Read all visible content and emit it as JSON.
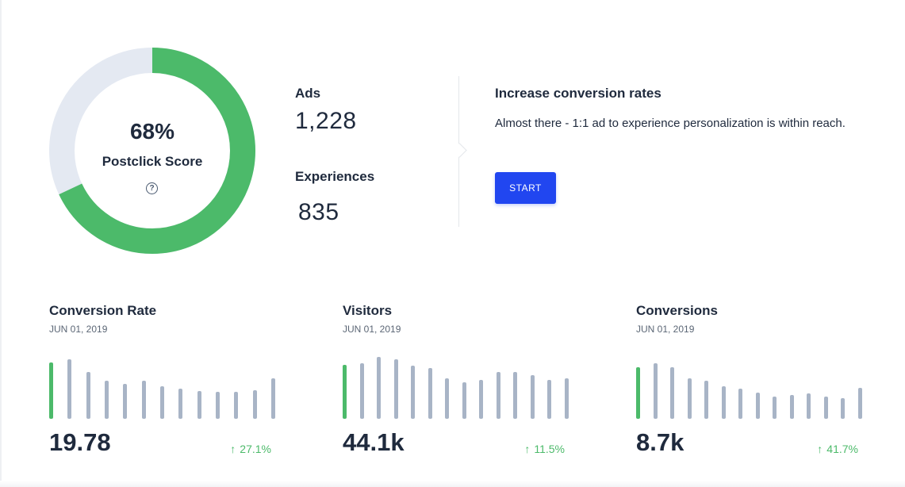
{
  "score": {
    "percent_label": "68%",
    "percent_value": 68,
    "label": "Postclick Score",
    "help_icon": "question-circle-icon",
    "colors": {
      "filled": "#4cba6a",
      "track": "#e4e9f2"
    }
  },
  "counts": {
    "ads_label": "Ads",
    "ads_value": "1,228",
    "experiences_label": "Experiences",
    "experiences_value": "835"
  },
  "promo": {
    "title": "Increase conversion rates",
    "text": "Almost there - 1:1 ad to experience personalization is within reach.",
    "button_label": "START",
    "button_color": "#2146f0"
  },
  "stats": [
    {
      "title": "Conversion Rate",
      "date": "JUN 01, 2019",
      "value": "19.78",
      "delta": "27.1%",
      "trend_icon": "arrow-up-icon",
      "bars": [
        71,
        75,
        59,
        48,
        44,
        48,
        41,
        38,
        35,
        34,
        34,
        36,
        51
      ]
    },
    {
      "title": "Visitors",
      "date": "JUN 01, 2019",
      "value": "44.1k",
      "delta": "11.5%",
      "trend_icon": "arrow-up-icon",
      "bars": [
        68,
        70,
        78,
        75,
        67,
        64,
        51,
        46,
        49,
        59,
        59,
        55,
        49,
        51
      ]
    },
    {
      "title": "Conversions",
      "date": "JUN 01, 2019",
      "value": "8.7k",
      "delta": "41.7%",
      "trend_icon": "arrow-up-icon",
      "bars": [
        65,
        70,
        65,
        51,
        48,
        41,
        38,
        33,
        28,
        30,
        32,
        28,
        26,
        39
      ]
    }
  ],
  "colors": {
    "bar_default": "#a8b4c6",
    "bar_active": "#4cba6a",
    "text": "#1f2a3d",
    "positive": "#4cba6a"
  }
}
